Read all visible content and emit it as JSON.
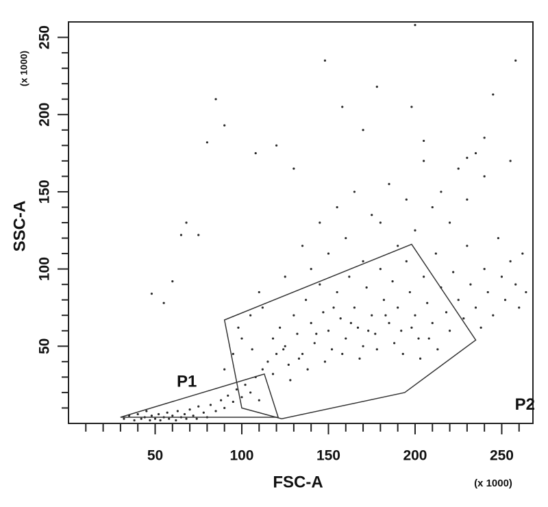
{
  "chart_data": {
    "type": "scatter",
    "x_label": "FSC-A",
    "y_label": "SSC-A",
    "x_unit": "(x 1000)",
    "y_unit": "(x 1000)",
    "xlim": [
      0,
      268
    ],
    "ylim": [
      0,
      260
    ],
    "xticks": [
      50,
      100,
      150,
      200,
      250
    ],
    "yticks": [
      50,
      100,
      150,
      200,
      250
    ],
    "xminorticks": [
      10,
      20,
      30,
      40,
      60,
      70,
      80,
      90,
      110,
      120,
      130,
      140,
      160,
      170,
      180,
      190,
      210,
      220,
      230,
      240,
      260
    ],
    "yminorticks": [
      10,
      20,
      30,
      40,
      60,
      70,
      80,
      90,
      110,
      120,
      130,
      140,
      160,
      170,
      180,
      190,
      210,
      220,
      230,
      240
    ],
    "color": "#2a2a2a",
    "x": [
      32,
      35,
      38,
      40,
      42,
      44,
      45,
      47,
      48,
      50,
      52,
      53,
      55,
      57,
      58,
      60,
      62,
      63,
      65,
      67,
      68,
      70,
      72,
      74,
      75,
      78,
      80,
      82,
      85,
      88,
      90,
      92,
      95,
      97,
      100,
      102,
      105,
      108,
      110,
      112,
      115,
      118,
      120,
      122,
      125,
      127,
      130,
      132,
      135,
      137,
      140,
      142,
      145,
      147,
      150,
      152,
      155,
      157,
      160,
      162,
      165,
      167,
      170,
      172,
      175,
      177,
      180,
      182,
      185,
      187,
      190,
      192,
      195,
      197,
      200,
      202,
      205,
      207,
      210,
      212,
      215,
      218,
      220,
      222,
      225,
      228,
      230,
      232,
      235,
      238,
      240,
      242,
      245,
      248,
      250,
      252,
      255,
      258,
      260,
      262,
      264,
      118,
      124,
      128,
      133,
      138,
      143,
      148,
      153,
      158,
      163,
      168,
      173,
      178,
      183,
      188,
      193,
      198,
      203,
      208,
      213,
      140,
      150,
      160,
      170,
      180,
      190,
      200,
      210,
      220,
      230,
      240,
      125,
      135,
      145,
      155,
      165,
      175,
      185,
      195,
      205,
      215,
      225,
      100,
      95,
      105,
      110,
      90,
      98,
      106,
      112,
      80,
      90,
      108,
      120,
      148,
      158,
      178,
      198,
      205,
      245,
      255,
      230,
      240,
      85,
      65,
      75,
      48,
      55,
      60,
      68,
      200,
      258,
      235,
      170,
      130
    ],
    "y": [
      3,
      5,
      2,
      6,
      3,
      4,
      8,
      2,
      5,
      3,
      6,
      2,
      4,
      7,
      3,
      5,
      2,
      8,
      4,
      6,
      3,
      9,
      5,
      3,
      11,
      7,
      4,
      12,
      8,
      15,
      10,
      18,
      14,
      22,
      17,
      25,
      20,
      30,
      15,
      35,
      40,
      55,
      45,
      62,
      50,
      38,
      70,
      58,
      45,
      80,
      65,
      52,
      90,
      72,
      60,
      48,
      85,
      68,
      55,
      95,
      75,
      62,
      50,
      88,
      70,
      58,
      100,
      80,
      65,
      92,
      75,
      60,
      105,
      85,
      70,
      55,
      95,
      78,
      65,
      110,
      88,
      72,
      60,
      98,
      80,
      68,
      115,
      90,
      75,
      62,
      100,
      85,
      70,
      120,
      95,
      80,
      105,
      90,
      75,
      110,
      85,
      32,
      48,
      28,
      42,
      35,
      58,
      40,
      75,
      45,
      65,
      42,
      60,
      48,
      70,
      52,
      45,
      62,
      42,
      55,
      48,
      100,
      110,
      120,
      105,
      130,
      115,
      125,
      140,
      130,
      145,
      160,
      95,
      115,
      130,
      140,
      150,
      135,
      155,
      145,
      170,
      150,
      165,
      55,
      45,
      70,
      85,
      35,
      62,
      48,
      75,
      182,
      193,
      175,
      180,
      235,
      205,
      218,
      205,
      183,
      213,
      170,
      172,
      185,
      210,
      122,
      122,
      84,
      78,
      92,
      130,
      258,
      235,
      175,
      190,
      165
    ],
    "gates": [
      {
        "name": "P1",
        "x": [
          30,
          113,
          121
        ],
        "y": [
          4,
          32,
          4
        ]
      },
      {
        "name": "P2",
        "x": [
          90,
          198,
          235,
          194,
          123,
          100
        ],
        "y": [
          67,
          116,
          54,
          20,
          3,
          10
        ]
      }
    ]
  }
}
